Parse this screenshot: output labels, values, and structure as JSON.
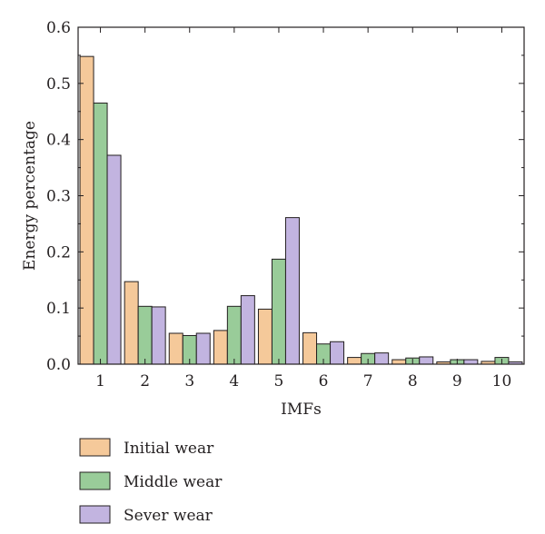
{
  "chart_data": {
    "type": "bar",
    "categories": [
      "1",
      "2",
      "3",
      "4",
      "5",
      "6",
      "7",
      "8",
      "9",
      "10"
    ],
    "series": [
      {
        "name": "Initial wear",
        "color": "#f5c99a",
        "values": [
          0.548,
          0.147,
          0.055,
          0.06,
          0.098,
          0.056,
          0.012,
          0.008,
          0.004,
          0.005
        ]
      },
      {
        "name": "Middle wear",
        "color": "#99cc99",
        "values": [
          0.465,
          0.103,
          0.051,
          0.103,
          0.187,
          0.036,
          0.019,
          0.011,
          0.008,
          0.012
        ]
      },
      {
        "name": "Sever wear",
        "color": "#c2b4e0",
        "values": [
          0.372,
          0.102,
          0.055,
          0.122,
          0.261,
          0.04,
          0.02,
          0.013,
          0.008,
          0.004
        ]
      }
    ],
    "title": "",
    "xlabel": "IMFs",
    "ylabel": "Energy percentage",
    "ylim": [
      0,
      0.6
    ],
    "yticks": [
      "0.0",
      "0.1",
      "0.2",
      "0.3",
      "0.4",
      "0.5",
      "0.6"
    ],
    "grid": false,
    "legend_position": "bottom-left"
  }
}
